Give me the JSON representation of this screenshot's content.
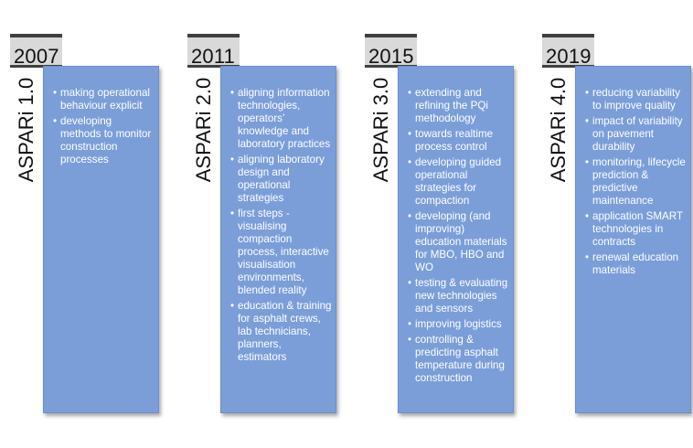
{
  "phases": [
    {
      "year": "2007",
      "label": "ASPARi 1.0",
      "items": [
        "making operational behaviour explicit",
        "developing methods to monitor construction processes"
      ]
    },
    {
      "year": "2011",
      "label": "ASPARi 2.0",
      "items": [
        "aligning information technologies, operators’ knowledge and laboratory practices",
        "aligning laboratory design and operational strategies",
        "first steps - visualising compaction process, interactive visualisation environments, blended reality",
        "education & training for asphalt crews, lab technicians, planners, estimators"
      ]
    },
    {
      "year": "2015",
      "label": "ASPARi 3.0",
      "items": [
        "extending and refining the PQi methodology",
        "towards realtime process control",
        "developing guided operational strategies for compaction",
        "developing (and improving) education materials for MBO, HBO and WO",
        "testing & evaluating new technologies and sensors",
        "improving logistics",
        "controlling & predicting asphalt temperature during construction"
      ]
    },
    {
      "year": "2019",
      "label": "ASPARi 4.0",
      "items": [
        "reducing variability to improve quality",
        "impact of variability on pavement durability",
        "monitoring, lifecycle prediction & predictive maintenance",
        "application SMART technologies in contracts",
        "renewal education materials"
      ]
    }
  ]
}
